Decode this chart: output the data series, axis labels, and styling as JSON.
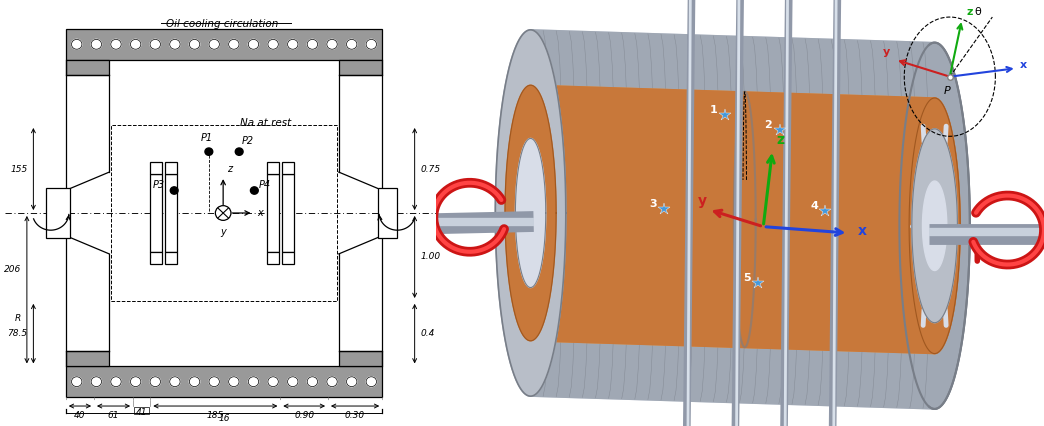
{
  "fig_width": 10.44,
  "fig_height": 4.26,
  "bg_color": "#ffffff",
  "left": {
    "gray": "#999999",
    "dark_gray": "#666666",
    "plate_holes": 16,
    "oil_label": "Oil cooling circulation",
    "na_label": "Na at rest",
    "dims_left": [
      "155",
      "R",
      "206",
      "78.5"
    ],
    "dims_right": [
      "0.75",
      "1.00",
      "0.4"
    ],
    "dims_bottom": [
      "40",
      "61",
      "41",
      "185",
      "0.90",
      "0.30",
      "16"
    ]
  },
  "right": {
    "orange": "#C8783A",
    "orange_dark": "#A05820",
    "orange_light": "#DDA060",
    "silver": "#B8BEC8",
    "silver_light": "#D8DDE8",
    "silver_dark": "#787E88",
    "silver_mid": "#A0A8B4",
    "red_arrow": "#CC1515",
    "z_color": "#10AA10",
    "x_color": "#2244DD",
    "y_color": "#CC2020",
    "theta_color": "#222222",
    "sensor_color": "#3388CC",
    "white": "#ffffff"
  }
}
